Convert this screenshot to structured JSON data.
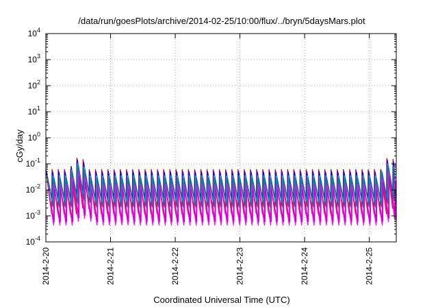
{
  "chart_data": {
    "type": "line",
    "title": "/data/run/goesPlots/archive/2014-02-25/10:00/flux/../bryn/5daysMars.plot",
    "xlabel": "Coordinated Universal Time (UTC)",
    "ylabel": "cGy/day",
    "yscale": "log",
    "ylim": [
      0.0001,
      10000
    ],
    "y_ticks": [
      {
        "value": 0.0001,
        "base": "10",
        "exp": "-4"
      },
      {
        "value": 0.001,
        "base": "10",
        "exp": "-3"
      },
      {
        "value": 0.01,
        "base": "10",
        "exp": "-2"
      },
      {
        "value": 0.1,
        "base": "10",
        "exp": "-1"
      },
      {
        "value": 1,
        "base": "10",
        "exp": "0"
      },
      {
        "value": 10,
        "base": "10",
        "exp": "1"
      },
      {
        "value": 100,
        "base": "10",
        "exp": "2"
      },
      {
        "value": 1000,
        "base": "10",
        "exp": "3"
      },
      {
        "value": 10000,
        "base": "10",
        "exp": "4"
      }
    ],
    "xlim": [
      "2014-02-20T00:00",
      "2014-02-25T10:00"
    ],
    "x_ticks": [
      "2014-2-20",
      "2014-2-21",
      "2014-2-22",
      "2014-2-23",
      "2014-2-24",
      "2014-2-25"
    ],
    "grid": true,
    "legend": "none",
    "sawtooth": {
      "cycle_hours": 2.3,
      "spike_hours": [
        "2014-02-20T12:20",
        "2014-02-25T07:30"
      ],
      "levels": [
        {
          "color": "#ff0000",
          "peak": 0.06,
          "trough": 0.0012
        },
        {
          "color": "#0000ff",
          "peak": 0.05,
          "trough": 0.004
        },
        {
          "color": "#00cccc",
          "peak": 0.035,
          "trough": 0.003
        },
        {
          "color": "#008080",
          "peak": 0.028,
          "trough": 0.0022
        },
        {
          "color": "#ff00ff",
          "peak": 0.016,
          "trough": 0.00045
        },
        {
          "color": "#cc00cc",
          "peak": 0.01,
          "trough": 0.0006
        }
      ]
    }
  }
}
